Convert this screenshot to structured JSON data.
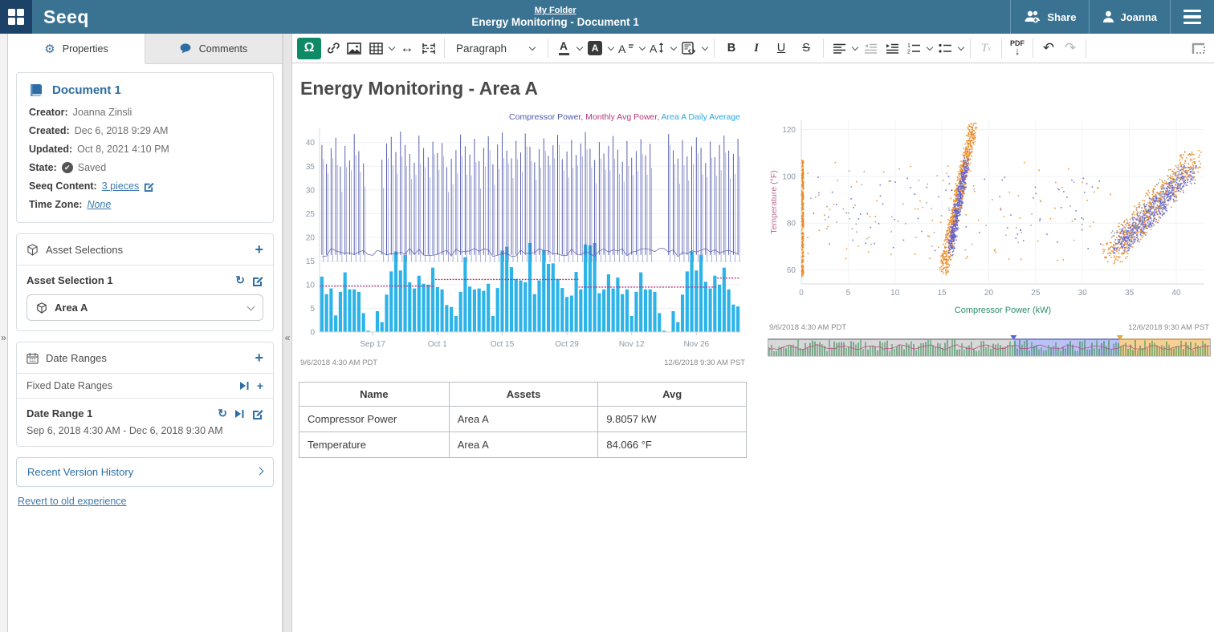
{
  "topbar": {
    "logo": "Seeq",
    "breadcrumb": "My Folder",
    "title": "Energy Monitoring - Document 1",
    "share_label": "Share",
    "user_label": "Joanna"
  },
  "sidebar": {
    "tabs": [
      {
        "label": "Properties"
      },
      {
        "label": "Comments"
      }
    ],
    "document": {
      "title": "Document 1",
      "creator_label": "Creator:",
      "creator": "Joanna Zinsli",
      "created_label": "Created:",
      "created": "Dec 6, 2018 9:29 AM",
      "updated_label": "Updated:",
      "updated": "Oct 8, 2021 4:10 PM",
      "state_label": "State:",
      "state": "Saved",
      "content_label": "Seeq Content:",
      "content_link": "3 pieces",
      "tz_label": "Time Zone:",
      "tz_link": "None"
    },
    "asset_selections": {
      "header": "Asset Selections",
      "item_title": "Asset Selection 1",
      "dropdown_value": "Area A"
    },
    "date_ranges": {
      "header": "Date Ranges",
      "group": "Fixed Date Ranges",
      "item_title": "Date Range 1",
      "range": "Sep 6, 2018 4:30 AM - Dec 6, 2018 9:30 AM"
    },
    "version_history_label": "Recent Version History",
    "revert_label": "Revert to old experience"
  },
  "toolbar": {
    "paragraph_label": "Paragraph",
    "pdf_label": "PDF"
  },
  "content": {
    "heading": "Energy Monitoring - Area A"
  },
  "table": {
    "headers": [
      "Name",
      "Assets",
      "Avg"
    ],
    "rows": [
      [
        "Compressor Power",
        "Area A",
        "9.8057 kW"
      ],
      [
        "Temperature",
        "Area A",
        "84.066 °F"
      ]
    ]
  },
  "chart_data": [
    {
      "type": "bar",
      "title": "",
      "legend": [
        {
          "label": "Compressor Power",
          "color": "#4f58ab"
        },
        {
          "label": "Monthly Avg Power",
          "color": "#b5377d"
        },
        {
          "label": "Area A Daily Average",
          "color": "#2aa7e0"
        }
      ],
      "ylim": [
        0,
        43
      ],
      "yticks": [
        0,
        5,
        10,
        15,
        20,
        25,
        30,
        35,
        40
      ],
      "xticks": [
        {
          "day": 11,
          "label": "Sep 17"
        },
        {
          "day": 25,
          "label": "Oct 1"
        },
        {
          "day": 39,
          "label": "Oct 15"
        },
        {
          "day": 53,
          "label": "Oct 29"
        },
        {
          "day": 67,
          "label": "Nov 12"
        },
        {
          "day": 81,
          "label": "Nov 26"
        }
      ],
      "start_label": "9/6/2018 4:30 AM  PDT",
      "end_label": "12/6/2018 9:30 AM  PST",
      "series": [
        {
          "name": "Area A Daily Average",
          "render": "bars",
          "color": "#2cb3e8",
          "values": [
            11.7,
            8,
            9.2,
            3.5,
            8.5,
            12.6,
            9,
            9,
            8.5,
            4,
            0.3,
            0.1,
            4.4,
            2.1,
            7.9,
            12.8,
            17,
            13,
            16.3,
            10.5,
            9.2,
            11.9,
            10.2,
            10,
            13.6,
            9.5,
            9,
            5.7,
            5.3,
            3.4,
            8.5,
            15.8,
            9.6,
            9,
            9.2,
            8.7,
            10.2,
            3.4,
            9.3,
            17.2,
            18,
            13.7,
            11.2,
            10.9,
            10.5,
            18.8,
            8,
            10.9,
            17.3,
            14.4,
            14.5,
            11.2,
            9.3,
            7.4,
            7.7,
            12.7,
            9,
            18.5,
            18.3,
            18.8,
            8.2,
            9,
            12.2,
            9.2,
            11.5,
            8,
            9,
            3.4,
            8.5,
            12.6,
            9,
            9,
            8.5,
            4,
            0.3,
            0.1,
            4.4,
            2.1,
            7.9,
            12.8,
            17,
            13,
            16.3,
            10.6,
            9.2,
            11.9,
            10,
            13.6,
            9,
            5.8,
            5.4
          ]
        },
        {
          "name": "Compressor Power",
          "render": "spikes",
          "color": "#585fb0",
          "baseline": 16.5,
          "peaks": [
            39.5,
            35.5,
            38.8,
            41,
            34.9,
            39.3,
            36.2,
            41.8,
            38.2,
            35.6,
            0,
            0,
            0,
            36.4,
            39.8,
            41.2,
            38,
            42.3,
            39.5,
            37.6,
            35.7,
            41.5,
            38.8,
            36.9,
            40.2,
            37.8,
            39.9,
            34.8,
            36.6,
            38.4,
            41.7,
            39.2,
            37.5,
            40.8,
            36.1,
            38.9,
            41.3,
            35.4,
            39.6,
            42.1,
            38.3,
            36.7,
            40.4,
            37.9,
            41.9,
            39.1,
            35.8,
            38.6,
            40.9,
            37.2,
            39.4,
            41.6,
            36.5,
            38.1,
            40.6,
            37.4,
            39.8,
            42.2,
            38.7,
            36.3,
            40.1,
            37.7,
            39.3,
            41.4,
            38.5,
            35.9,
            40.3,
            36.8,
            38.2,
            40.7,
            37.3,
            39.7,
            0,
            0,
            0,
            41.8,
            38.4,
            36.6,
            40.5,
            37.1,
            39.2,
            41.1,
            38.9,
            35.7,
            40.2,
            36.9,
            39.5,
            41.5,
            38.3,
            37.6,
            40.8
          ]
        },
        {
          "name": "Monthly Avg Power",
          "render": "step",
          "color": "#b5377d",
          "segments": [
            {
              "from": 0,
              "to": 25,
              "value": 9.7
            },
            {
              "from": 25,
              "to": 56,
              "value": 11.1
            },
            {
              "from": 56,
              "to": 86,
              "value": 9.5
            },
            {
              "from": 86,
              "to": 91,
              "value": 11.4
            }
          ]
        }
      ]
    },
    {
      "type": "scatter",
      "xlabel": "Compressor Power (kW)",
      "ylabel": "Temperature (°F)",
      "xlim": [
        0,
        43
      ],
      "ylim": [
        54,
        124
      ],
      "xticks": [
        0,
        5,
        10,
        15,
        20,
        25,
        30,
        35,
        40
      ],
      "yticks": [
        60,
        80,
        100,
        120
      ],
      "xlabel_color": "#2d8c6e",
      "ylabel_color": "#bb6b93",
      "start_label": "9/6/2018 4:30 AM  PDT",
      "end_label": "12/6/2018 9:30 AM  PST",
      "clusters": [
        {
          "name": "zero-power-column",
          "mode": "vline",
          "color": "#e8871e",
          "x": 0.15,
          "jx": 0.2,
          "ymin": 57,
          "ymax": 107,
          "count": 280
        },
        {
          "name": "mid-ramp-orange",
          "mode": "diag",
          "color": "#e8871e",
          "x0": 15.2,
          "x1": 18.3,
          "y0": 60,
          "y1": 121,
          "jx": 0.45,
          "jy": 3,
          "count": 750
        },
        {
          "name": "mid-ramp-blue",
          "mode": "diag",
          "color": "#5b5fd8",
          "x0": 15.9,
          "x1": 17.6,
          "y0": 68,
          "y1": 106,
          "jx": 0.35,
          "jy": 3,
          "count": 380
        },
        {
          "name": "right-ramp-orange",
          "mode": "diag",
          "color": "#e8871e",
          "x0": 33,
          "x1": 42,
          "y0": 66,
          "y1": 108,
          "jx": 1.2,
          "jy": 4,
          "count": 620
        },
        {
          "name": "right-ramp-blue",
          "mode": "diag",
          "color": "#5b5fd8",
          "x0": 34,
          "x1": 41.5,
          "y0": 70,
          "y1": 102,
          "jx": 1.0,
          "jy": 3.5,
          "count": 470
        },
        {
          "name": "right-ramp-gray",
          "mode": "diag",
          "color": "#9a9a9a",
          "x0": 34,
          "x1": 41,
          "y0": 72,
          "y1": 102,
          "jx": 1.3,
          "jy": 4,
          "count": 170
        },
        {
          "name": "sparse-orange",
          "mode": "uniform",
          "color": "#e8871e",
          "x0": 0.5,
          "x1": 33,
          "y0": 64,
          "y1": 106,
          "count": 95
        },
        {
          "name": "sparse-blue",
          "mode": "uniform",
          "color": "#5b5fd8",
          "x0": 1,
          "x1": 32,
          "y0": 68,
          "y1": 100,
          "count": 75
        },
        {
          "name": "sparse-gray",
          "mode": "uniform",
          "color": "#9a9a9a",
          "x0": 1,
          "x1": 30,
          "y0": 70,
          "y1": 100,
          "count": 45
        }
      ]
    },
    {
      "type": "strip-timeline",
      "regions": [
        {
          "from": 0.0,
          "to": 0.555,
          "fill": "#d8d8d8",
          "edge": "#8a9098"
        },
        {
          "from": 0.555,
          "to": 0.795,
          "fill": "#b9c2f2",
          "edge": "#5661d8"
        },
        {
          "from": 0.795,
          "to": 1.0,
          "fill": "#f6d092",
          "edge": "#e9a335"
        }
      ],
      "signal_color": "#2f9150",
      "signal2_color": "#c24b86"
    }
  ]
}
